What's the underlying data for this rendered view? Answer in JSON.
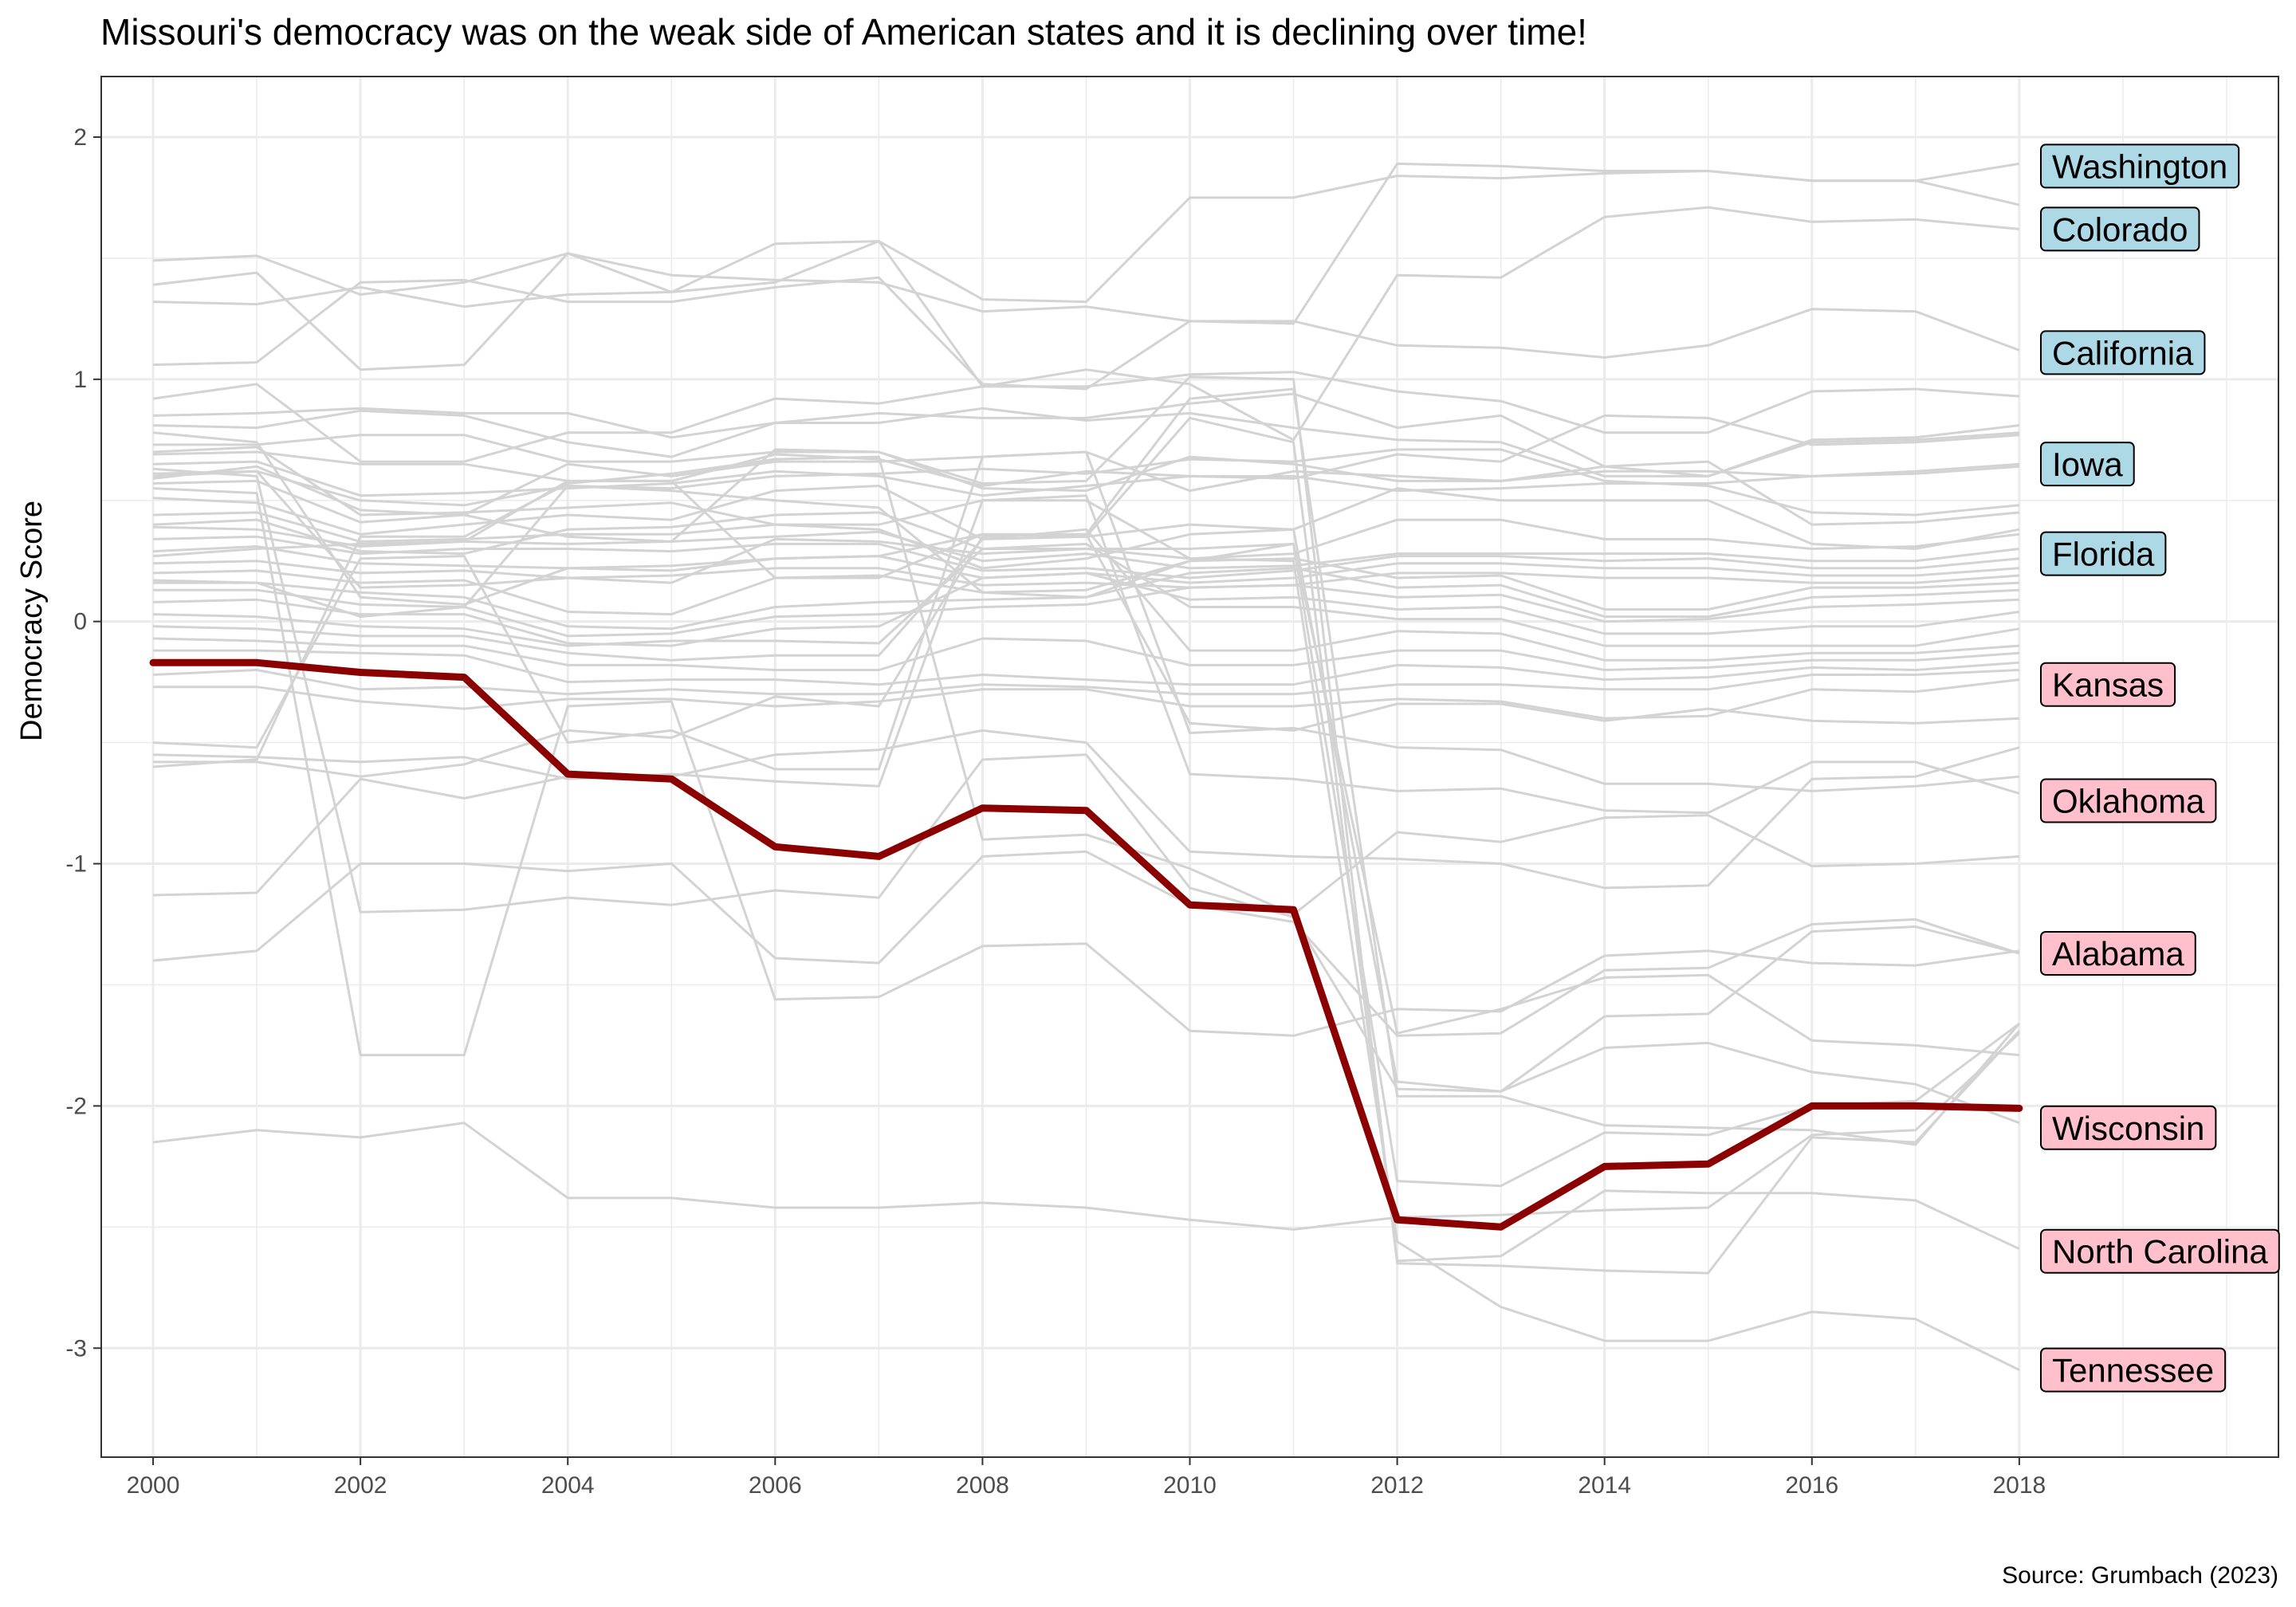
{
  "chart_data": {
    "type": "line",
    "title": "Missouri's democracy was on the weak side of American states and it is declining over time!",
    "caption": "Source: Grumbach (2023)",
    "xlabel": "",
    "ylabel": "Democracy Score",
    "xlim": [
      1999.5,
      2020.5
    ],
    "ylim": [
      -3.45,
      2.25
    ],
    "x_ticks": [
      2000,
      2002,
      2004,
      2006,
      2008,
      2010,
      2012,
      2014,
      2016,
      2018
    ],
    "x_tick_labels": [
      "2000",
      "2002",
      "2004",
      "2006",
      "2008",
      "2010",
      "2012",
      "2014",
      "2016",
      "2018"
    ],
    "y_ticks": [
      -3,
      -2,
      -1,
      0,
      1,
      2
    ],
    "y_tick_labels": [
      "-3",
      "-2",
      "-1",
      "0",
      "1",
      "2"
    ],
    "grid": true,
    "colors": {
      "highlight": "#8b0000",
      "background_lines": "#d3d3d3",
      "high_label_fill": "#add8e6",
      "low_label_fill": "#ffc0cb",
      "grid": "#ebebeb",
      "panel_border": "#333333"
    },
    "x": [
      2000,
      2001,
      2002,
      2003,
      2004,
      2005,
      2006,
      2007,
      2008,
      2009,
      2010,
      2011,
      2012,
      2013,
      2014,
      2015,
      2016,
      2017,
      2018
    ],
    "highlight_series": {
      "name": "",
      "values": [
        -0.17,
        -0.17,
        -0.21,
        -0.23,
        -0.63,
        -0.65,
        -0.93,
        -0.97,
        -0.77,
        -0.78,
        -1.17,
        -1.19,
        -2.47,
        -2.5,
        -2.25,
        -2.24,
        -2.0,
        -2.0,
        -2.01
      ]
    },
    "series": [
      {
        "name": "",
        "values": [
          1.49,
          1.51,
          1.35,
          1.4,
          1.52,
          1.43,
          1.41,
          1.4,
          1.28,
          1.3,
          1.24,
          1.23,
          1.89,
          1.88,
          1.86,
          1.86,
          1.82,
          1.82,
          1.89
        ]
      },
      {
        "name": "",
        "values": [
          1.39,
          1.44,
          1.04,
          1.06,
          1.52,
          1.36,
          1.4,
          1.57,
          1.33,
          1.32,
          1.75,
          1.75,
          1.84,
          1.83,
          1.85,
          1.86,
          1.82,
          1.82,
          1.72
        ]
      },
      {
        "name": "",
        "values": [
          1.32,
          1.31,
          1.38,
          1.3,
          1.35,
          1.36,
          1.56,
          1.57,
          0.97,
          1.04,
          0.98,
          0.75,
          1.43,
          1.42,
          1.67,
          1.71,
          1.65,
          1.66,
          1.62
        ]
      },
      {
        "name": "",
        "values": [
          1.06,
          1.07,
          1.4,
          1.41,
          1.32,
          1.32,
          1.38,
          1.42,
          0.98,
          0.96,
          1.24,
          1.24,
          1.14,
          1.13,
          1.09,
          1.14,
          1.29,
          1.28,
          1.12
        ]
      },
      {
        "name": "",
        "values": [
          0.92,
          0.98,
          0.66,
          0.66,
          0.78,
          0.78,
          0.92,
          0.9,
          0.97,
          0.97,
          1.02,
          1.03,
          0.95,
          0.91,
          0.78,
          0.78,
          0.95,
          0.96,
          0.93
        ]
      },
      {
        "name": "",
        "values": [
          0.85,
          0.86,
          0.88,
          0.86,
          0.86,
          0.76,
          0.82,
          0.86,
          0.84,
          0.84,
          0.9,
          0.94,
          0.8,
          0.85,
          0.64,
          0.6,
          0.75,
          0.76,
          0.81
        ]
      },
      {
        "name": "",
        "values": [
          0.81,
          0.8,
          0.87,
          0.85,
          0.74,
          0.68,
          0.82,
          0.82,
          0.88,
          0.83,
          0.86,
          0.8,
          0.75,
          0.74,
          0.6,
          0.6,
          0.74,
          0.75,
          0.78
        ]
      },
      {
        "name": "",
        "values": [
          0.73,
          0.73,
          0.77,
          0.77,
          0.66,
          0.66,
          0.7,
          0.7,
          0.55,
          0.54,
          0.68,
          0.65,
          0.58,
          0.58,
          0.62,
          0.62,
          0.6,
          0.62,
          0.65
        ]
      },
      {
        "name": "",
        "values": [
          0.69,
          0.7,
          0.65,
          0.65,
          0.58,
          0.58,
          0.69,
          0.67,
          0.56,
          0.62,
          0.6,
          0.59,
          0.69,
          0.66,
          0.85,
          0.84,
          0.73,
          0.74,
          0.77
        ]
      },
      {
        "name": "",
        "values": [
          0.65,
          0.66,
          0.52,
          0.53,
          0.55,
          0.57,
          0.62,
          0.6,
          0.52,
          0.56,
          0.6,
          0.6,
          0.54,
          0.55,
          0.57,
          0.57,
          0.6,
          0.61,
          0.64
        ]
      },
      {
        "name": "",
        "values": [
          0.61,
          0.62,
          0.5,
          0.48,
          0.56,
          0.55,
          0.6,
          0.61,
          0.63,
          0.61,
          0.67,
          0.66,
          0.71,
          0.71,
          0.58,
          0.56,
          0.45,
          0.44,
          0.48
        ]
      },
      {
        "name": "",
        "values": [
          0.57,
          0.58,
          0.41,
          0.44,
          0.65,
          0.6,
          0.66,
          0.66,
          0.68,
          0.7,
          0.54,
          0.62,
          0.6,
          0.58,
          0.64,
          0.66,
          0.4,
          0.41,
          0.45
        ]
      },
      {
        "name": "",
        "values": [
          0.51,
          0.49,
          0.36,
          0.4,
          0.44,
          0.42,
          0.54,
          0.56,
          0.34,
          0.35,
          0.4,
          0.38,
          0.55,
          0.5,
          0.5,
          0.5,
          0.32,
          0.3,
          0.38
        ]
      },
      {
        "name": "",
        "values": [
          0.44,
          0.45,
          0.33,
          0.34,
          0.36,
          0.36,
          0.4,
          0.4,
          0.5,
          0.5,
          0.26,
          0.28,
          0.42,
          0.42,
          0.34,
          0.34,
          0.3,
          0.31,
          0.36
        ]
      },
      {
        "name": "",
        "values": [
          0.39,
          0.38,
          0.31,
          0.33,
          0.32,
          0.33,
          0.35,
          0.37,
          0.25,
          0.28,
          0.22,
          0.23,
          0.28,
          0.28,
          0.28,
          0.28,
          0.25,
          0.25,
          0.3
        ]
      },
      {
        "name": "",
        "values": [
          0.34,
          0.35,
          0.28,
          0.3,
          0.3,
          0.29,
          0.32,
          0.32,
          0.21,
          0.22,
          0.18,
          0.21,
          0.27,
          0.27,
          0.25,
          0.26,
          0.22,
          0.22,
          0.26
        ]
      },
      {
        "name": "",
        "values": [
          0.29,
          0.31,
          0.24,
          0.23,
          0.22,
          0.21,
          0.26,
          0.27,
          0.18,
          0.2,
          0.16,
          0.18,
          0.24,
          0.24,
          0.22,
          0.22,
          0.19,
          0.19,
          0.22
        ]
      },
      {
        "name": "",
        "values": [
          0.24,
          0.25,
          0.2,
          0.21,
          0.18,
          0.19,
          0.22,
          0.22,
          0.15,
          0.16,
          0.14,
          0.15,
          0.2,
          0.2,
          0.18,
          0.18,
          0.16,
          0.16,
          0.19
        ]
      },
      {
        "name": "",
        "values": [
          0.2,
          0.21,
          0.16,
          0.17,
          0.04,
          0.03,
          0.18,
          0.19,
          0.12,
          0.13,
          0.25,
          0.26,
          0.18,
          0.19,
          0.05,
          0.05,
          0.14,
          0.14,
          0.16
        ]
      },
      {
        "name": "",
        "values": [
          0.17,
          0.16,
          0.12,
          0.1,
          -0.02,
          -0.03,
          0.06,
          0.08,
          0.09,
          0.1,
          0.2,
          0.22,
          0.14,
          0.15,
          0.02,
          0.02,
          0.1,
          0.11,
          0.13
        ]
      },
      {
        "name": "",
        "values": [
          0.13,
          0.13,
          0.07,
          0.06,
          -0.06,
          -0.05,
          0.02,
          0.03,
          0.06,
          0.07,
          0.14,
          0.15,
          0.1,
          0.11,
          0.0,
          0.01,
          0.06,
          0.07,
          0.09
        ]
      },
      {
        "name": "",
        "values": [
          0.08,
          0.09,
          0.03,
          0.03,
          -0.09,
          -0.1,
          -0.03,
          -0.02,
          0.18,
          0.2,
          0.09,
          0.1,
          0.05,
          0.06,
          -0.05,
          -0.05,
          -0.02,
          -0.02,
          0.04
        ]
      },
      {
        "name": "",
        "values": [
          0.03,
          0.02,
          -0.02,
          -0.03,
          -0.1,
          -0.08,
          -0.08,
          -0.09,
          0.3,
          0.32,
          0.06,
          0.06,
          0.01,
          0.01,
          -0.1,
          -0.1,
          -0.1,
          -0.1,
          -0.03
        ]
      },
      {
        "name": "",
        "values": [
          -0.02,
          -0.03,
          -0.06,
          -0.06,
          -0.13,
          -0.16,
          -0.14,
          -0.14,
          0.34,
          0.38,
          -0.12,
          -0.12,
          -0.04,
          -0.05,
          -0.16,
          -0.16,
          -0.13,
          -0.13,
          -0.1
        ]
      },
      {
        "name": "",
        "values": [
          -0.07,
          -0.08,
          -0.1,
          -0.1,
          -0.18,
          -0.18,
          -0.2,
          -0.2,
          -0.07,
          -0.08,
          -0.18,
          -0.18,
          -0.12,
          -0.12,
          -0.2,
          -0.19,
          -0.16,
          -0.16,
          -0.13
        ]
      },
      {
        "name": "",
        "values": [
          -0.12,
          -0.12,
          -0.13,
          -0.14,
          -0.25,
          -0.24,
          -0.24,
          -0.26,
          -0.22,
          -0.24,
          -0.26,
          -0.26,
          -0.18,
          -0.19,
          -0.24,
          -0.23,
          -0.19,
          -0.2,
          -0.17
        ]
      },
      {
        "name": "",
        "values": [
          -0.22,
          -0.2,
          -0.28,
          -0.27,
          -0.3,
          -0.28,
          -0.3,
          -0.3,
          -0.26,
          -0.27,
          -0.3,
          -0.3,
          -0.26,
          -0.26,
          -0.28,
          -0.28,
          -0.22,
          -0.22,
          -0.2
        ]
      },
      {
        "name": "",
        "values": [
          -0.27,
          -0.27,
          -0.33,
          -0.36,
          -0.32,
          -0.32,
          -0.35,
          -0.33,
          -0.28,
          -0.28,
          -0.35,
          -0.35,
          -0.32,
          -0.33,
          -0.4,
          -0.39,
          -0.28,
          -0.29,
          -0.24
        ]
      },
      {
        "name": "",
        "values": [
          -0.58,
          -0.58,
          -0.64,
          -0.59,
          -0.45,
          -0.48,
          -0.31,
          -0.35,
          0.35,
          0.36,
          -0.42,
          -0.45,
          -0.34,
          -0.34,
          -0.41,
          -0.36,
          -0.41,
          -0.42,
          -0.4
        ]
      },
      {
        "name": "",
        "values": [
          -0.5,
          -0.52,
          0.26,
          0.27,
          -0.5,
          -0.45,
          -0.61,
          -0.61,
          0.68,
          0.7,
          -0.46,
          -0.44,
          -0.52,
          -0.53,
          -0.67,
          -0.67,
          -0.7,
          -0.68,
          -0.64
        ]
      },
      {
        "name": "",
        "values": [
          -0.55,
          -0.56,
          -0.58,
          -0.56,
          -0.65,
          -0.63,
          -0.66,
          -0.68,
          0.5,
          0.52,
          -0.63,
          -0.65,
          -0.7,
          -0.69,
          -0.78,
          -0.79,
          -0.58,
          -0.58,
          -0.71
        ]
      },
      {
        "name": "",
        "values": [
          -0.6,
          -0.57,
          0.35,
          0.35,
          0.57,
          0.61,
          0.67,
          0.68,
          -0.9,
          -0.88,
          -1.02,
          -1.21,
          -0.87,
          -0.91,
          -0.81,
          -0.8,
          -1.01,
          -1.0,
          -0.97
        ]
      },
      {
        "name": "",
        "values": [
          -1.13,
          -1.12,
          -0.65,
          -0.73,
          -0.64,
          -0.64,
          -0.55,
          -0.53,
          -0.45,
          -0.5,
          -0.95,
          -0.97,
          -0.98,
          -1.0,
          -1.1,
          -1.09,
          -0.65,
          -0.64,
          -0.52
        ]
      },
      {
        "name": "",
        "values": [
          -1.4,
          -1.36,
          -1.0,
          -1.0,
          -1.03,
          -1.0,
          -1.39,
          -1.41,
          -0.97,
          -0.95,
          -1.17,
          -1.24,
          -1.71,
          -1.7,
          -1.44,
          -1.43,
          -1.25,
          -1.23,
          -1.37
        ]
      },
      {
        "name": "",
        "values": [
          0.63,
          0.6,
          -1.2,
          -1.19,
          -1.14,
          -1.17,
          -1.11,
          -1.14,
          -0.57,
          -0.55,
          -1.1,
          -1.22,
          -1.93,
          -1.94,
          -1.63,
          -1.62,
          -1.28,
          -1.26,
          -1.37
        ]
      },
      {
        "name": "",
        "values": [
          0.55,
          0.53,
          -1.79,
          -1.79,
          -0.35,
          -0.33,
          -1.56,
          -1.55,
          -1.34,
          -1.33,
          -1.69,
          -1.71,
          -1.6,
          -1.61,
          -1.38,
          -1.36,
          -1.41,
          -1.42,
          -1.36
        ]
      },
      {
        "name": "",
        "values": [
          0.6,
          0.62,
          0.14,
          0.15,
          0.18,
          0.16,
          0.34,
          0.33,
          0.28,
          0.3,
          0.3,
          0.32,
          -1.7,
          -1.6,
          -1.47,
          -1.46,
          -1.73,
          -1.75,
          -1.79
        ]
      },
      {
        "name": "",
        "values": [
          0.7,
          0.72,
          0.44,
          0.45,
          0.47,
          0.49,
          0.4,
          0.38,
          0.22,
          0.26,
          0.36,
          0.38,
          -1.9,
          -1.94,
          -1.76,
          -1.74,
          -1.86,
          -1.91,
          -2.07
        ]
      },
      {
        "name": "",
        "values": [
          0.78,
          0.74,
          0.1,
          0.07,
          0.22,
          0.23,
          0.26,
          0.27,
          0.36,
          0.36,
          0.92,
          0.96,
          -1.96,
          -1.96,
          -2.08,
          -2.09,
          -2.1,
          -2.16,
          -1.66
        ]
      },
      {
        "name": "",
        "values": [
          0.16,
          0.16,
          0.02,
          0.06,
          0.56,
          0.54,
          0.5,
          0.47,
          0.12,
          0.1,
          0.25,
          0.32,
          -2.31,
          -2.33,
          -2.11,
          -2.12,
          -2.0,
          -1.98,
          -1.66
        ]
      },
      {
        "name": "",
        "values": [
          0.27,
          0.3,
          0.32,
          0.33,
          0.58,
          0.58,
          0.18,
          0.18,
          0.36,
          0.35,
          0.84,
          0.74,
          -2.64,
          -2.62,
          -2.35,
          -2.36,
          -2.36,
          -2.39,
          -2.59
        ]
      },
      {
        "name": "",
        "values": [
          0.4,
          0.42,
          0.29,
          0.28,
          0.38,
          0.39,
          0.44,
          0.45,
          0.3,
          0.3,
          0.26,
          0.25,
          -2.56,
          -2.83,
          -2.97,
          -2.97,
          -2.85,
          -2.88,
          -3.09
        ]
      },
      {
        "name": "",
        "values": [
          0.59,
          0.64,
          0.46,
          0.44,
          0.35,
          0.33,
          0.71,
          0.7,
          0.57,
          0.58,
          1.01,
          1.0,
          -2.65,
          -2.66,
          -2.68,
          -2.69,
          -2.13,
          -2.15,
          -1.69
        ]
      },
      {
        "name": "",
        "values": [
          -2.15,
          -2.1,
          -2.13,
          -2.07,
          -2.38,
          -2.38,
          -2.42,
          -2.42,
          -2.4,
          -2.42,
          -2.47,
          -2.51,
          -2.46,
          -2.45,
          -2.43,
          -2.42,
          -2.12,
          -2.1,
          -1.7
        ]
      }
    ],
    "labels": [
      {
        "text": "Washington",
        "y": 1.88,
        "group": "high"
      },
      {
        "text": "Colorado",
        "y": 1.62,
        "group": "high"
      },
      {
        "text": "California",
        "y": 1.11,
        "group": "high"
      },
      {
        "text": "Iowa",
        "y": 0.65,
        "group": "high"
      },
      {
        "text": "Florida",
        "y": 0.28,
        "group": "high"
      },
      {
        "text": "Kansas",
        "y": -0.26,
        "group": "low"
      },
      {
        "text": "Oklahoma",
        "y": -0.74,
        "group": "low"
      },
      {
        "text": "Alabama",
        "y": -1.37,
        "group": "low"
      },
      {
        "text": "Wisconsin",
        "y": -2.09,
        "group": "low"
      },
      {
        "text": "North Carolina",
        "y": -2.6,
        "group": "low"
      },
      {
        "text": "Tennessee",
        "y": -3.09,
        "group": "low"
      }
    ]
  }
}
